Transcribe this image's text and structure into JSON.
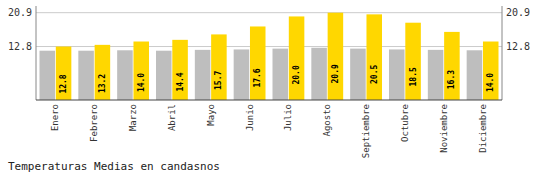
{
  "chart_data": {
    "type": "bar",
    "title": "Temperaturas Medias en candasnos",
    "categories": [
      "Enero",
      "Febrero",
      "Marzo",
      "Abril",
      "Mayo",
      "Junio",
      "Julio",
      "Agosto",
      "Septiembre",
      "Octubre",
      "Noviembre",
      "Diciembre"
    ],
    "series": [
      {
        "color": "#BEBEBE",
        "values": [
          11.8,
          11.8,
          11.9,
          11.8,
          12.0,
          12.1,
          12.3,
          12.5,
          12.3,
          12.1,
          12.0,
          11.9
        ]
      },
      {
        "color": "#FFD700",
        "values": [
          12.8,
          13.2,
          14.0,
          14.4,
          15.7,
          17.6,
          20.0,
          20.9,
          20.5,
          18.5,
          16.3,
          14.0
        ],
        "value_labels": [
          "12.8",
          "13.2",
          "14.0",
          "14.4",
          "15.7",
          "17.6",
          "20.0",
          "20.9",
          "20.5",
          "18.5",
          "16.3",
          "14.0"
        ],
        "data_labels": true
      }
    ],
    "ylim": [
      0,
      22.5
    ],
    "yticks": [
      12.8,
      20.9
    ],
    "y2lim": [
      0,
      22.5
    ],
    "y2ticks": [
      12.8,
      20.9
    ],
    "grid": true
  }
}
